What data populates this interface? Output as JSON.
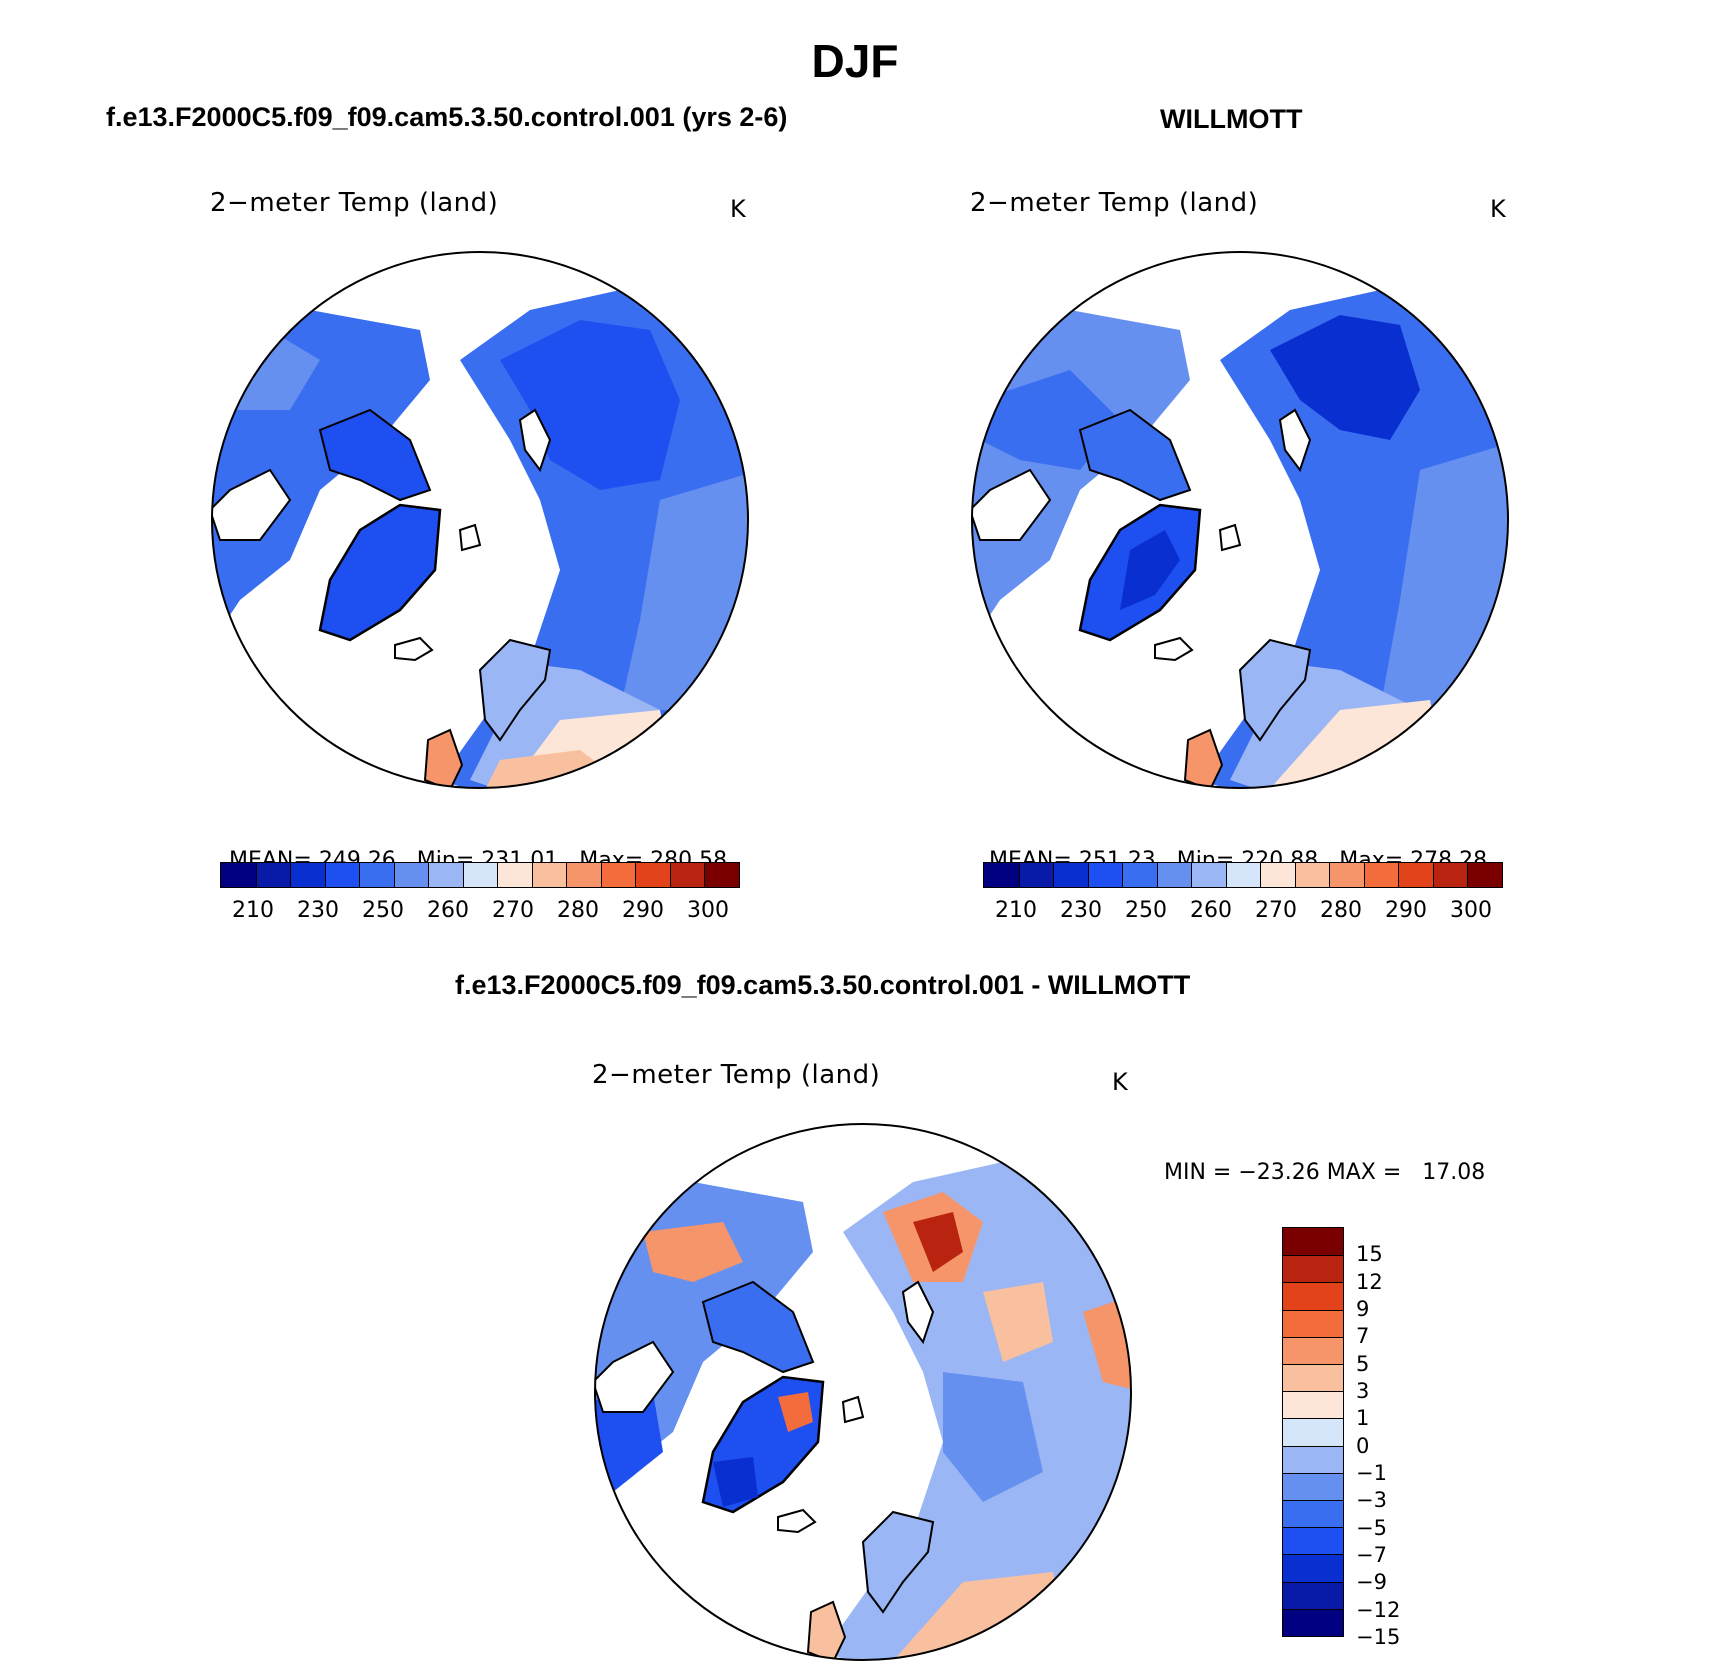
{
  "figure": {
    "season": "DJF",
    "left_title": "f.e13.F2000C5.f09_f09.cam5.3.50.control.001 (yrs 2-6)",
    "right_title": "WILLMOTT",
    "diff_title": "f.e13.F2000C5.f09_f09.cam5.3.50.control.001 - WILLMOTT"
  },
  "colors": {
    "abs_scale": [
      "#000080",
      "#0a1aa8",
      "#0a2fd0",
      "#1e4ff0",
      "#3a6ef0",
      "#6690f0",
      "#9ab6f5",
      "#d6e6fa",
      "#fde6d8",
      "#f9c0a0",
      "#f7956a",
      "#f26c3c",
      "#e2431a",
      "#b82410",
      "#7a0000"
    ],
    "diff_scale": [
      "#000080",
      "#0a1aa8",
      "#0a2fd0",
      "#1e4ff0",
      "#3a6ef0",
      "#6690f0",
      "#9ab6f5",
      "#d6e6fa",
      "#fde6d8",
      "#f9c0a0",
      "#f7956a",
      "#f26c3c",
      "#e2431a",
      "#b82410",
      "#7a0000"
    ],
    "land_model": "#3a6ef0",
    "land_obs": "#3a6ef0"
  },
  "chart_data": [
    {
      "type": "map",
      "projection": "north polar stereographic",
      "title": "2−meter Temp (land)",
      "units": "K",
      "stats": {
        "mean": "249.26",
        "min": "231.01",
        "max": "280.58"
      },
      "stats_labels": {
        "mean": "MEAN=",
        "min": "Min=",
        "max": "Max="
      },
      "colorbar_ticks": [
        "210",
        "230",
        "250",
        "260",
        "270",
        "280",
        "290",
        "300"
      ]
    },
    {
      "type": "map",
      "projection": "north polar stereographic",
      "title": "2−meter Temp (land)",
      "units": "K",
      "stats": {
        "mean": "251.23",
        "min": "220.88",
        "max": "278.28"
      },
      "stats_labels": {
        "mean": "MEAN=",
        "min": "Min=",
        "max": "Max="
      },
      "colorbar_ticks": [
        "210",
        "230",
        "250",
        "260",
        "270",
        "280",
        "290",
        "300"
      ]
    },
    {
      "type": "map",
      "projection": "north polar stereographic",
      "title": "2−meter Temp (land)",
      "units": "K",
      "stats_line": "MIN = −23.26 MAX =   17.08",
      "colorbar_ticks": [
        "15",
        "12",
        "9",
        "7",
        "5",
        "3",
        "1",
        "0",
        "−1",
        "−3",
        "−5",
        "−7",
        "−9",
        "−12",
        "−15"
      ]
    }
  ]
}
